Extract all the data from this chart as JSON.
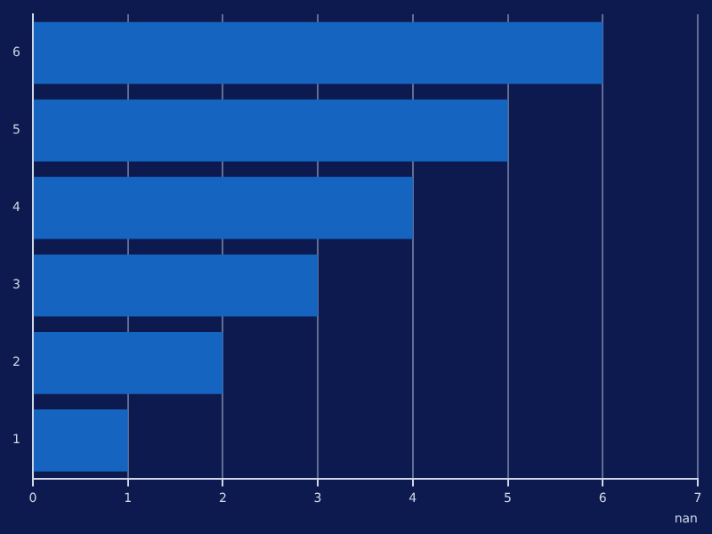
{
  "chart_data": {
    "type": "bar",
    "orientation": "horizontal",
    "categories": [
      "6",
      "5",
      "4",
      "3",
      "2",
      "1"
    ],
    "values": [
      6,
      5,
      4,
      3,
      2,
      1
    ],
    "color": "#1565c0",
    "xlabel": "nan",
    "xlim": [
      0,
      7
    ],
    "xticks": [
      0,
      1,
      2,
      3,
      4,
      5,
      6,
      7
    ],
    "grid": "x",
    "legend": false
  }
}
